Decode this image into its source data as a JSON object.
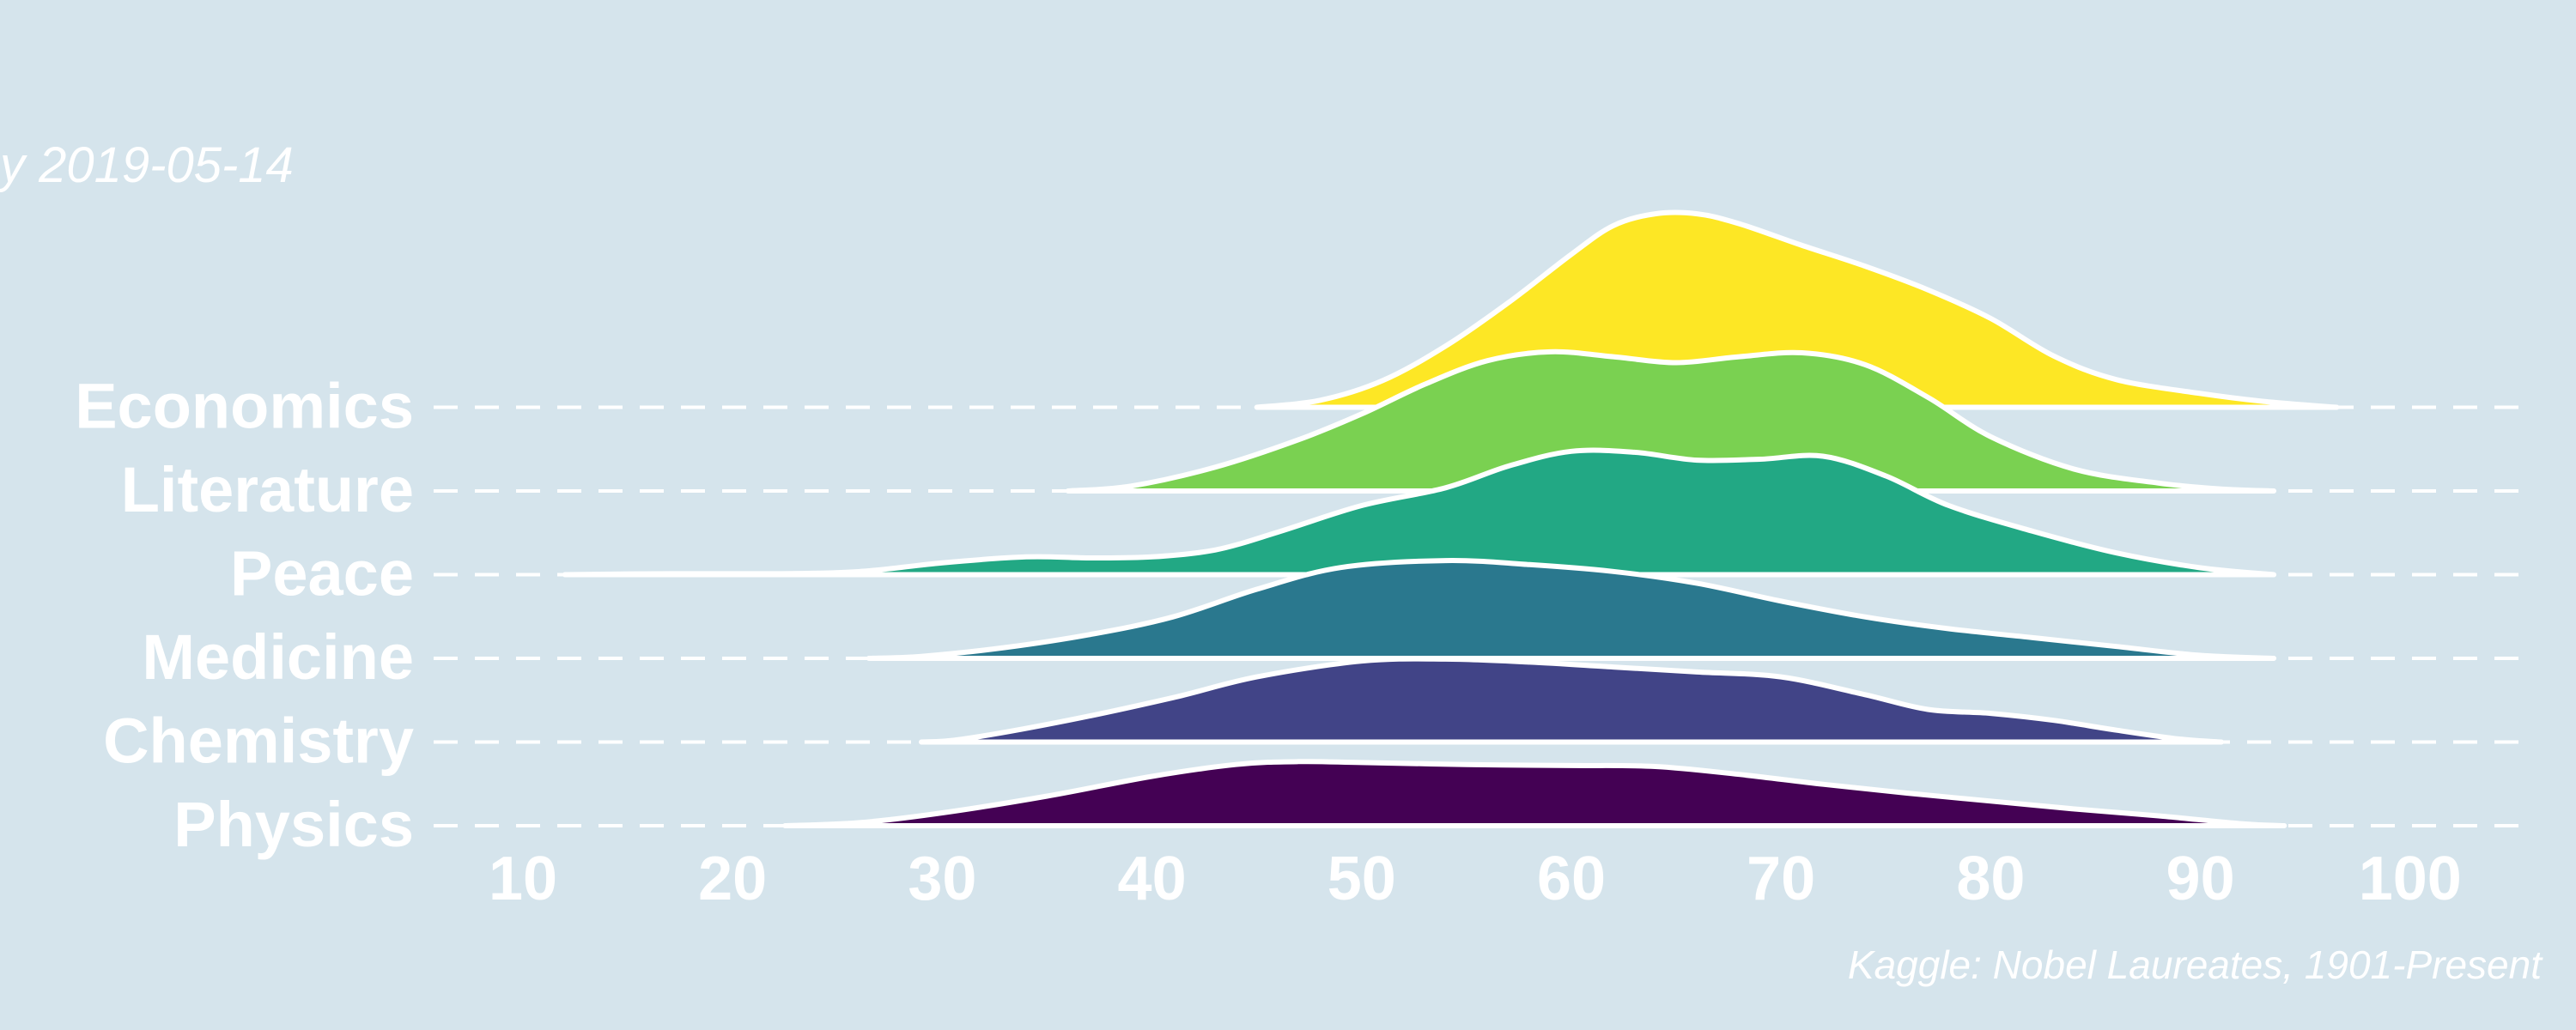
{
  "subtitle": "y 2019-05-14",
  "caption": "Kaggle: Nobel Laureates, 1901-Present",
  "chart_data": {
    "type": "ridgeline",
    "xlabel": "",
    "ylabel": "",
    "xlim": [
      5,
      107
    ],
    "xticks": [
      10,
      20,
      30,
      40,
      50,
      60,
      70,
      80,
      90,
      100
    ],
    "grid": "horizontal dashed baselines",
    "categories": [
      "Physics",
      "Chemistry",
      "Medicine",
      "Peace",
      "Literature",
      "Economics"
    ],
    "series": [
      {
        "name": "Physics",
        "color": "#440154",
        "range": [
          22.5,
          94
        ],
        "x": [
          22.5,
          26,
          30,
          35,
          40,
          44,
          47,
          50,
          55,
          60,
          64,
          68,
          72,
          76,
          80,
          84,
          88,
          92,
          94
        ],
        "density": [
          0.0,
          0.03,
          0.13,
          0.3,
          0.5,
          0.62,
          0.65,
          0.64,
          0.62,
          0.61,
          0.6,
          0.52,
          0.42,
          0.33,
          0.25,
          0.17,
          0.1,
          0.02,
          0.0
        ]
      },
      {
        "name": "Chemistry",
        "color": "#414487",
        "range": [
          29,
          91
        ],
        "x": [
          29,
          31,
          36,
          41,
          45,
          50,
          54,
          58,
          62,
          66,
          70,
          74,
          77,
          80,
          83,
          86,
          89,
          91
        ],
        "density": [
          0.0,
          0.03,
          0.22,
          0.45,
          0.66,
          0.82,
          0.84,
          0.81,
          0.76,
          0.71,
          0.66,
          0.48,
          0.33,
          0.29,
          0.22,
          0.12,
          0.03,
          0.0
        ]
      },
      {
        "name": "Medicine",
        "color": "#2a788e",
        "range": [
          26.5,
          93.5
        ],
        "x": [
          26.5,
          29,
          33,
          37,
          41,
          45,
          49,
          54,
          58,
          62,
          66,
          70,
          74,
          78,
          82,
          86,
          90,
          93.5
        ],
        "density": [
          0.0,
          0.02,
          0.11,
          0.24,
          0.42,
          0.7,
          0.92,
          0.99,
          0.95,
          0.88,
          0.76,
          0.58,
          0.42,
          0.3,
          0.21,
          0.12,
          0.03,
          0.0
        ]
      },
      {
        "name": "Peace",
        "color": "#22a884",
        "range": [
          12,
          93.5
        ],
        "x": [
          12,
          17,
          22,
          26,
          30,
          34,
          37,
          40,
          43,
          46,
          50,
          54,
          57,
          60,
          63,
          66,
          69,
          72,
          75,
          78,
          82,
          86,
          90,
          93.5
        ],
        "density": [
          0.0,
          0.01,
          0.01,
          0.03,
          0.12,
          0.18,
          0.17,
          0.18,
          0.25,
          0.43,
          0.7,
          0.88,
          1.1,
          1.25,
          1.24,
          1.16,
          1.17,
          1.2,
          1.0,
          0.7,
          0.44,
          0.22,
          0.07,
          0.0
        ]
      },
      {
        "name": "Literature",
        "color": "#7ad151",
        "range": [
          36,
          93.5
        ],
        "x": [
          36,
          39,
          43,
          47,
          50,
          53,
          56,
          59,
          62,
          65,
          68,
          71,
          74,
          77,
          80,
          84,
          88,
          91,
          93.5
        ],
        "density": [
          0.0,
          0.05,
          0.24,
          0.52,
          0.78,
          1.08,
          1.32,
          1.41,
          1.36,
          1.3,
          1.36,
          1.4,
          1.28,
          0.95,
          0.55,
          0.22,
          0.08,
          0.02,
          0.0
        ]
      },
      {
        "name": "Economics",
        "color": "#fde725",
        "range": [
          45,
          96.5
        ],
        "x": [
          45,
          48,
          51,
          54,
          57,
          60,
          62,
          64,
          66,
          68,
          71,
          74,
          77,
          80,
          83,
          86,
          90,
          93,
          96.5
        ],
        "density": [
          0.0,
          0.07,
          0.27,
          0.62,
          1.06,
          1.55,
          1.84,
          1.96,
          1.96,
          1.86,
          1.64,
          1.43,
          1.19,
          0.9,
          0.52,
          0.28,
          0.14,
          0.06,
          0.0
        ]
      }
    ]
  }
}
